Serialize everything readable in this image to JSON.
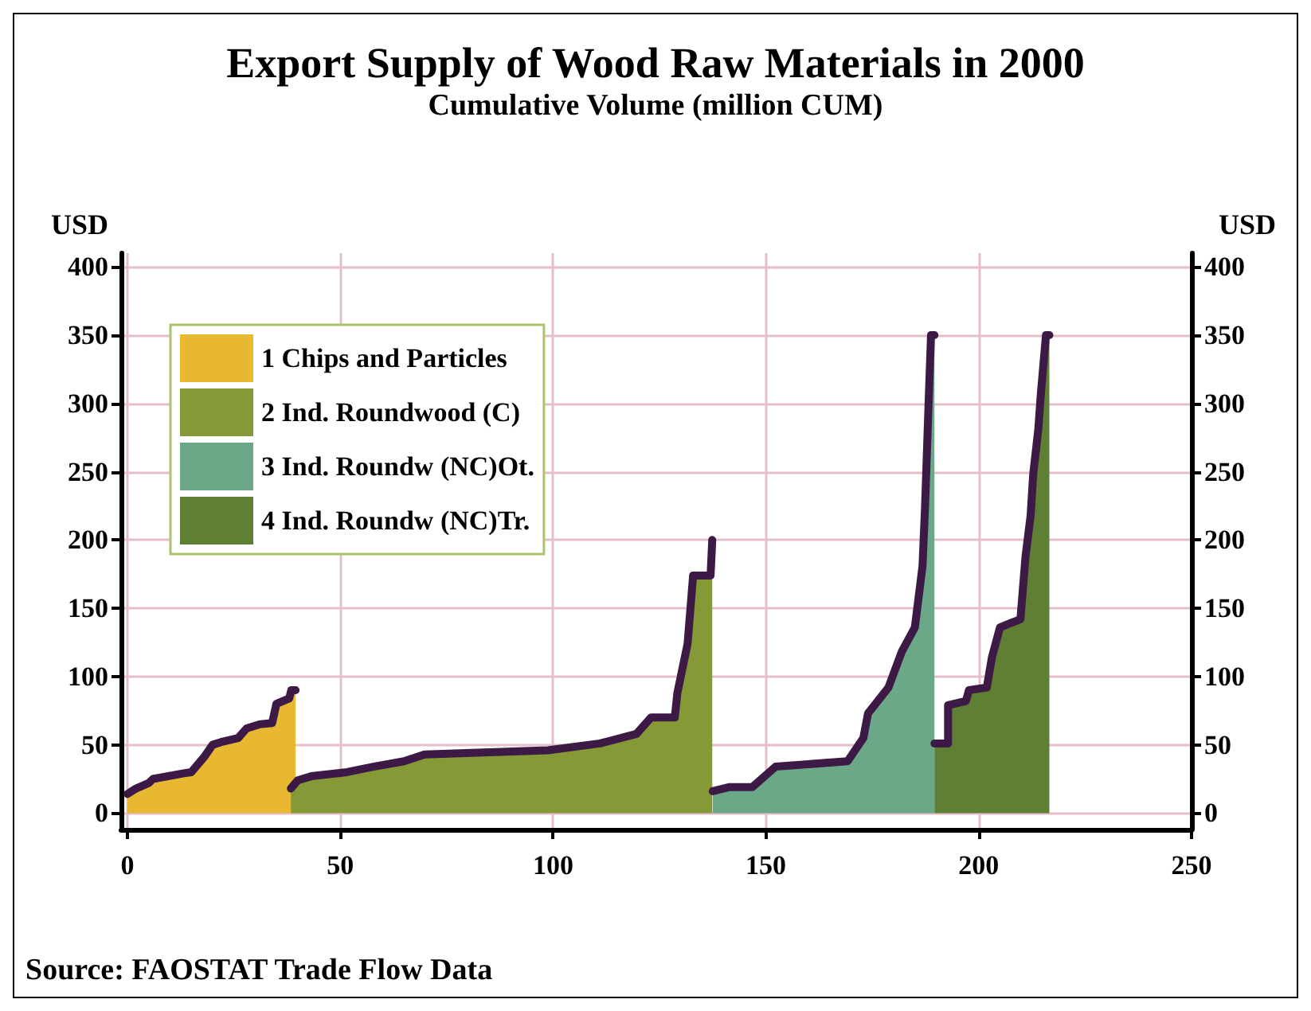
{
  "chart_data": {
    "type": "area",
    "title": "Export Supply of Wood Raw Materials in 2000",
    "subtitle": "Cumulative Volume (million CUM)",
    "ylabel": "USD",
    "y2label": "USD",
    "xlim": [
      -1.5,
      250
    ],
    "xticks": [
      0,
      50,
      100,
      150,
      200,
      250
    ],
    "ylim": [
      -12,
      410
    ],
    "yticks": [
      0,
      50,
      100,
      150,
      200,
      250,
      300,
      350,
      400
    ],
    "y2lim": [
      -12,
      410
    ],
    "y2ticks": [
      0,
      50,
      100,
      150,
      200,
      250,
      300,
      350,
      400
    ],
    "grid": true,
    "legend": "top left",
    "annotations": [
      "Source: FAOSTAT Trade Flow Data"
    ],
    "series": [
      {
        "name": "1 Chips and Particles",
        "color": "#e8b830",
        "x": [
          0,
          2,
          5,
          6,
          13,
          15,
          18,
          20,
          22,
          26,
          28,
          31,
          34,
          35,
          38,
          38.5,
          39.5
        ],
        "values": [
          14,
          18,
          22,
          25,
          29,
          30,
          41,
          50,
          52,
          55,
          62,
          65,
          66,
          80,
          84,
          90,
          90
        ]
      },
      {
        "name": "2 Ind. Roundwood (C)",
        "color": "#859a37",
        "x": [
          38.4,
          40,
          43.2,
          51.6,
          57.8,
          65,
          69.8,
          98.8,
          111,
          119.6,
          123,
          128.6,
          129.2,
          131.6,
          132.9,
          137,
          137.4
        ],
        "values": [
          18,
          24,
          27,
          30,
          34,
          38,
          43,
          46,
          51,
          58,
          70,
          70,
          88,
          124,
          174,
          174,
          200
        ]
      },
      {
        "name": "3 Ind. Roundw (NC)Ot.",
        "color": "#6aa888",
        "x": [
          137.5,
          141.3,
          146.8,
          152.3,
          169.2,
          172.9,
          174,
          178.8,
          181.9,
          185,
          186.8,
          187.4,
          188.3,
          188.8,
          189.6
        ],
        "values": [
          16,
          19,
          19,
          34,
          38,
          55,
          73,
          92,
          118,
          136,
          181,
          225,
          307,
          350,
          350
        ]
      },
      {
        "name": "4 Ind. Roundw (NC)Tr.",
        "color": "#5f7f35",
        "x": [
          189.6,
          192.8,
          192.8,
          197,
          197.7,
          201.9,
          203.1,
          205,
          209.8,
          211,
          212.2,
          212.8,
          214,
          214.6,
          215.8,
          216.6
        ],
        "values": [
          51,
          51,
          79,
          82,
          90,
          92,
          114,
          136,
          142,
          188,
          218,
          248,
          281,
          307,
          350,
          350
        ]
      },
      {
        "type": "line",
        "color": "#3d1a45",
        "x": [
          0,
          2,
          5,
          6,
          13,
          15,
          18,
          20,
          22,
          26,
          28,
          31,
          34,
          35,
          38,
          38.5,
          39.5
        ],
        "values": [
          14,
          18,
          22,
          25,
          29,
          30,
          41,
          50,
          52,
          55,
          62,
          65,
          66,
          80,
          84,
          90,
          90
        ]
      },
      {
        "type": "line",
        "color": "#3d1a45",
        "x": [
          38.4,
          40,
          43.2,
          51.6,
          57.8,
          65,
          69.8,
          98.8,
          111,
          119.6,
          123,
          128.6,
          129.2,
          131.6,
          132.9,
          137,
          137.4
        ],
        "values": [
          18,
          24,
          27,
          30,
          34,
          38,
          43,
          46,
          51,
          58,
          70,
          70,
          88,
          124,
          174,
          174,
          200
        ]
      },
      {
        "type": "line",
        "color": "#3d1a45",
        "x": [
          137.5,
          141.3,
          146.8,
          152.3,
          169.2,
          172.9,
          174,
          178.8,
          181.9,
          185,
          186.8,
          187.4,
          188.3,
          188.8,
          189.6
        ],
        "values": [
          16,
          19,
          19,
          34,
          38,
          55,
          73,
          92,
          118,
          136,
          181,
          225,
          307,
          350,
          350
        ]
      },
      {
        "type": "line",
        "color": "#3d1a45",
        "x": [
          189.6,
          192.8,
          192.8,
          197,
          197.7,
          201.9,
          203.1,
          205,
          209.8,
          211,
          212.2,
          212.8,
          214,
          214.6,
          215.8,
          216.6
        ],
        "values": [
          51,
          51,
          79,
          82,
          90,
          92,
          114,
          136,
          142,
          188,
          218,
          248,
          281,
          307,
          350,
          350
        ]
      }
    ]
  }
}
